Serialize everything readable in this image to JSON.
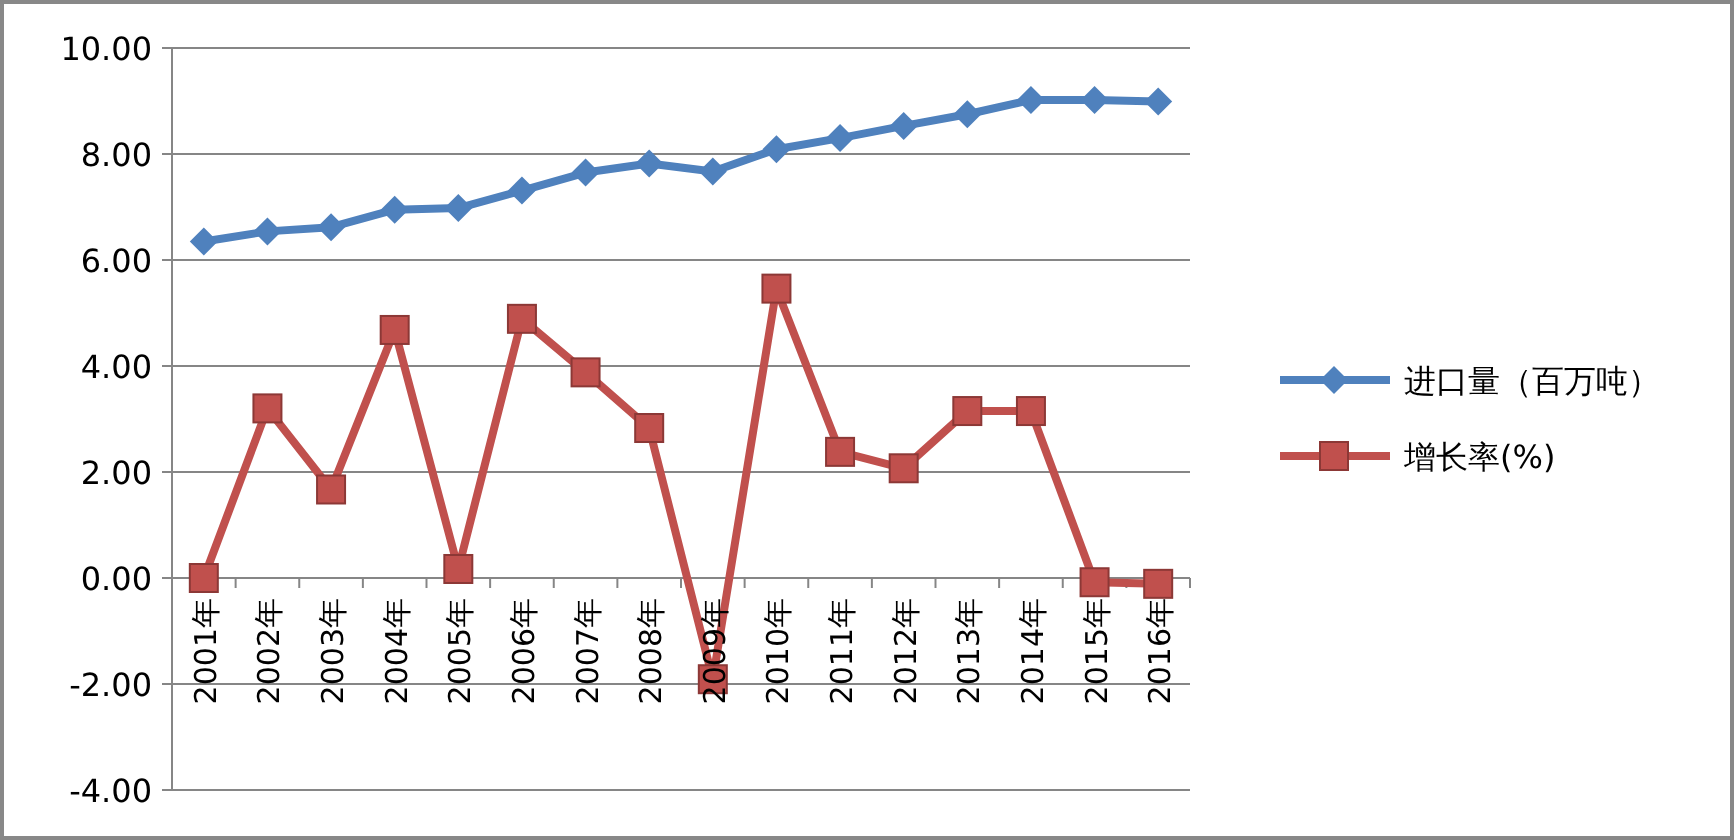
{
  "chart_data": {
    "type": "line",
    "categories": [
      "2001年",
      "2002年",
      "2003年",
      "2004年",
      "2005年",
      "2006年",
      "2007年",
      "2008年",
      "2009年",
      "2010年",
      "2011年",
      "2012年",
      "2013年",
      "2014年",
      "2015年",
      "2016年"
    ],
    "series": [
      {
        "name": "进口量（百万吨）",
        "color": "#4f81bd",
        "marker": "diamond",
        "values": [
          6.35,
          6.54,
          6.62,
          6.95,
          6.98,
          7.31,
          7.65,
          7.82,
          7.67,
          8.09,
          8.3,
          8.53,
          8.75,
          9.02,
          9.02,
          8.99
        ]
      },
      {
        "name": "增长率(%)",
        "color": "#c0504d",
        "marker": "square",
        "values": [
          0.0,
          3.2,
          1.67,
          4.68,
          0.17,
          4.89,
          3.88,
          2.83,
          -1.91,
          5.46,
          2.38,
          2.07,
          3.15,
          3.15,
          -0.08,
          -0.11
        ]
      }
    ],
    "ylim": [
      -4,
      10
    ],
    "yticks": [
      {
        "value": -4,
        "label": "-4.00"
      },
      {
        "value": -2,
        "label": "-2.00"
      },
      {
        "value": 0,
        "label": "0.00"
      },
      {
        "value": 2,
        "label": "2.00"
      },
      {
        "value": 4,
        "label": "4.00"
      },
      {
        "value": 6,
        "label": "6.00"
      },
      {
        "value": 8,
        "label": "8.00"
      },
      {
        "value": 10,
        "label": "10.00"
      }
    ],
    "grid": "y",
    "legend": "right"
  }
}
